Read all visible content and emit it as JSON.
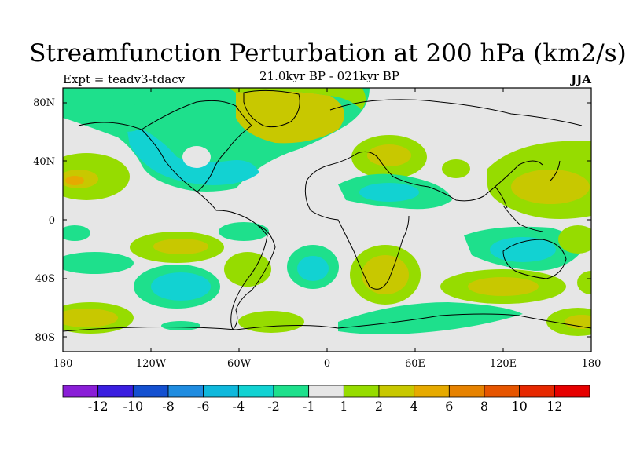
{
  "title": "Streamfunction Perturbation at 200 hPa (km2/s)",
  "subtitle_left": "Expt = teadv3-tdacv",
  "subtitle_center": "21.0kyr BP - 021kyr BP",
  "subtitle_right": "JJA",
  "map": {
    "ocean_color": "#e6e6e6",
    "lat_labels": [
      "80N",
      "40N",
      "0",
      "40S",
      "80S"
    ],
    "lon_labels": [
      "180",
      "120W",
      "60W",
      "0",
      "60E",
      "120E",
      "180"
    ]
  },
  "colorbar": {
    "colors": [
      "#8a1ed7",
      "#3a1ee0",
      "#1450d0",
      "#1f8ce0",
      "#0fb8dc",
      "#12d2d2",
      "#1ee08c",
      "#e6e6e6",
      "#96dc00",
      "#c8c800",
      "#e6aa00",
      "#e68200",
      "#e65500",
      "#e62800",
      "#e60000"
    ],
    "labels": [
      "-12",
      "-10",
      "-8",
      "-6",
      "-4",
      "-2",
      "-1",
      "1",
      "2",
      "4",
      "6",
      "8",
      "10",
      "12"
    ]
  }
}
